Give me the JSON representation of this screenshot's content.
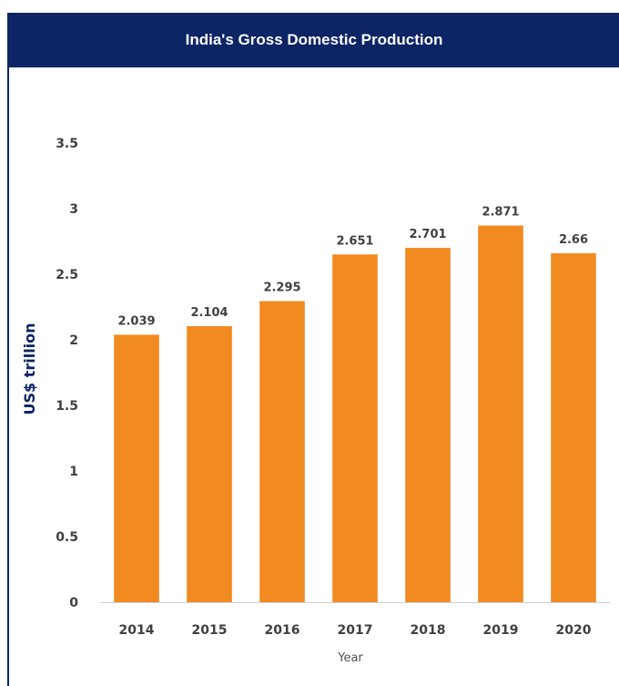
{
  "chart_data": {
    "type": "bar",
    "title": "India's Gross Domestic Production",
    "xlabel": "Year",
    "ylabel": "US$ trillion",
    "categories": [
      "2014",
      "2015",
      "2016",
      "2017",
      "2018",
      "2019",
      "2020"
    ],
    "values": [
      2.039,
      2.104,
      2.295,
      2.651,
      2.701,
      2.871,
      2.66
    ],
    "value_labels": [
      "2.039",
      "2.104",
      "2.295",
      "2.651",
      "2.701",
      "2.871",
      "2.66"
    ],
    "yticks": [
      "0",
      "0.5",
      "1",
      "1.5",
      "2",
      "2.5",
      "3",
      "3.5"
    ],
    "ylim": [
      0,
      3.5
    ],
    "grid": false,
    "legend": "none",
    "colors": {
      "bar": "#f28a22",
      "header": "#0d2465",
      "axis_title": "#0d2465",
      "text": "#404040"
    }
  }
}
